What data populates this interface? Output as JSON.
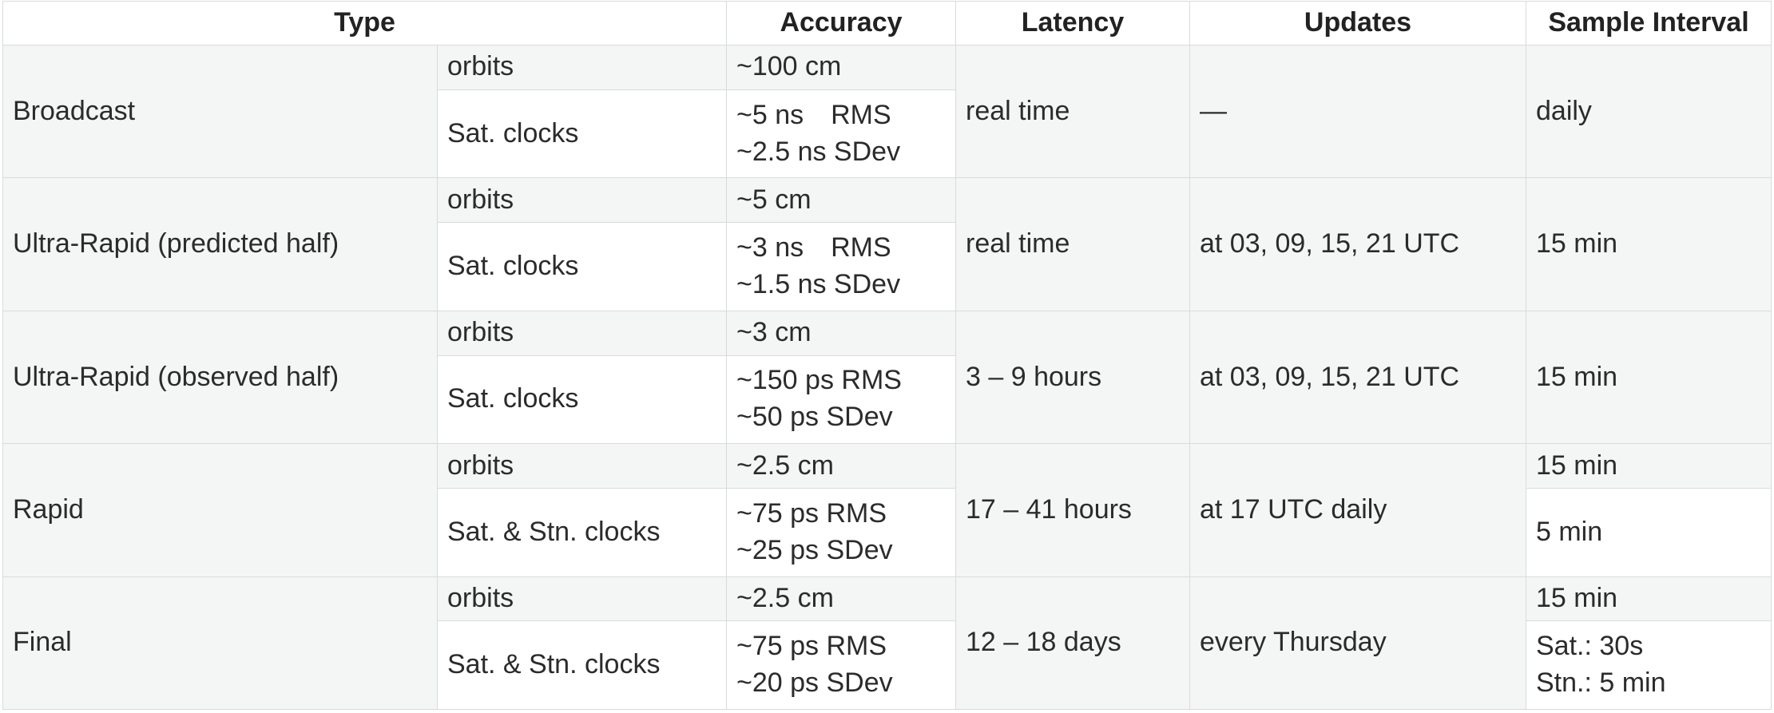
{
  "headers": {
    "type": "Type",
    "accuracy": "Accuracy",
    "latency": "Latency",
    "updates": "Updates",
    "sample_interval": "Sample Interval"
  },
  "rows": [
    {
      "type": "Broadcast",
      "orbits": {
        "label": "orbits",
        "accuracy": "~100 cm"
      },
      "clocks": {
        "label": "Sat. clocks",
        "accuracy_rms": "~5 ns",
        "accuracy_rms_unit": "RMS",
        "accuracy_sdev": "~2.5 ns SDev"
      },
      "latency": "real time",
      "updates": "—",
      "sample_interval": "daily"
    },
    {
      "type": "Ultra-Rapid (predicted half)",
      "orbits": {
        "label": "orbits",
        "accuracy": "~5 cm"
      },
      "clocks": {
        "label": "Sat. clocks",
        "accuracy_rms": "~3 ns",
        "accuracy_rms_unit": "RMS",
        "accuracy_sdev": "~1.5 ns SDev"
      },
      "latency": "real time",
      "updates": "at 03, 09, 15, 21 UTC",
      "sample_interval": "15 min"
    },
    {
      "type": "Ultra-Rapid (observed half)",
      "orbits": {
        "label": "orbits",
        "accuracy": "~3 cm"
      },
      "clocks": {
        "label": "Sat. clocks",
        "accuracy_rms": "~150 ps RMS",
        "accuracy_sdev": "~50 ps SDev"
      },
      "latency": "3 – 9 hours",
      "updates": "at 03, 09, 15, 21 UTC",
      "sample_interval": "15 min"
    },
    {
      "type": "Rapid",
      "orbits": {
        "label": "orbits",
        "accuracy": "~2.5 cm",
        "sample_interval": "15 min"
      },
      "clocks": {
        "label": "Sat. & Stn. clocks",
        "accuracy_rms": "~75 ps RMS",
        "accuracy_sdev": "~25 ps SDev",
        "sample_interval": "5 min"
      },
      "latency": "17 – 41 hours",
      "updates": "at 17 UTC daily"
    },
    {
      "type": "Final",
      "orbits": {
        "label": "orbits",
        "accuracy": "~2.5 cm",
        "sample_interval": "15 min"
      },
      "clocks": {
        "label": "Sat. & Stn. clocks",
        "accuracy_rms": "~75 ps RMS",
        "accuracy_sdev": "~20 ps SDev",
        "sample_interval_sat": "Sat.: 30s",
        "sample_interval_stn": "Stn.: 5 min"
      },
      "latency": "12 – 18 days",
      "updates": "every Thursday"
    }
  ]
}
